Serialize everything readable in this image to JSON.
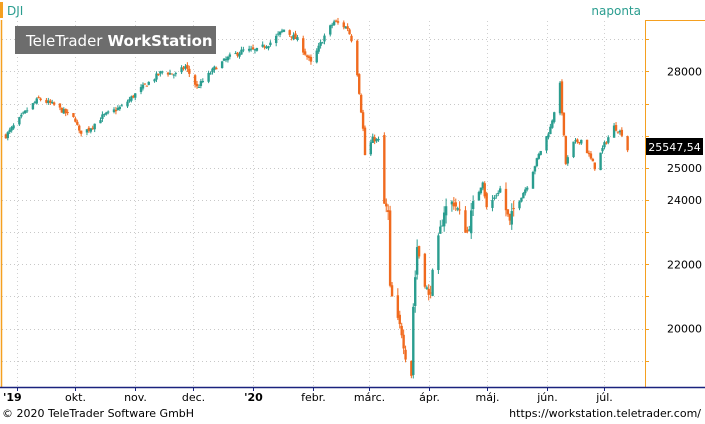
{
  "symbol": "DJI",
  "frequency": "naponta",
  "watermark": {
    "brand_a": "TeleTrader",
    "brand_b": "WorkStation"
  },
  "last_price_label": "25547,54",
  "footer": {
    "copyright": "© 2020 TeleTrader Software GmbH",
    "url": "https://workstation.teletrader.com/"
  },
  "colors": {
    "up": "#2a9d8f",
    "down": "#f06a1e",
    "accent": "#f5a020",
    "axis_bottom": "#1a237e"
  },
  "chart_data": {
    "type": "candlestick",
    "ylim": [
      18213,
      29568
    ],
    "y_ticks": [
      {
        "value": 20000,
        "label": "20000"
      },
      {
        "value": 22000,
        "label": "22000"
      },
      {
        "value": 24000,
        "label": "24000"
      },
      {
        "value": 25000,
        "label": "25000"
      },
      {
        "value": 28000,
        "label": "28000"
      }
    ],
    "x_ticks": [
      "'19",
      "okt.",
      "nov.",
      "dec.",
      "'20",
      "febr.",
      "márc.",
      "ápr.",
      "máj.",
      "jún.",
      "júl."
    ],
    "x_tick_dates": [
      "2019-09-01",
      "2019-10-01",
      "2019-11-01",
      "2019-12-01",
      "2020-01-01",
      "2020-02-01",
      "2020-03-01",
      "2020-04-01",
      "2020-05-01",
      "2020-06-01",
      "2020-07-01"
    ],
    "series_close": [
      [
        "2019-08-26",
        26000
      ],
      [
        "2019-09-06",
        26800
      ],
      [
        "2019-09-12",
        27150
      ],
      [
        "2019-09-20",
        26950
      ],
      [
        "2019-10-01",
        26500
      ],
      [
        "2019-10-03",
        26100
      ],
      [
        "2019-10-08",
        26200
      ],
      [
        "2019-10-15",
        26600
      ],
      [
        "2019-10-25",
        26900
      ],
      [
        "2019-11-04",
        27460
      ],
      [
        "2019-11-15",
        28000
      ],
      [
        "2019-11-22",
        27900
      ],
      [
        "2019-11-27",
        28150
      ],
      [
        "2019-12-03",
        27500
      ],
      [
        "2019-12-13",
        28150
      ],
      [
        "2019-12-20",
        28450
      ],
      [
        "2019-12-27",
        28650
      ],
      [
        "2020-01-03",
        28650
      ],
      [
        "2020-01-10",
        28900
      ],
      [
        "2020-01-17",
        29300
      ],
      [
        "2020-01-24",
        28980
      ],
      [
        "2020-01-31",
        28250
      ],
      [
        "2020-02-07",
        29100
      ],
      [
        "2020-02-12",
        29550
      ],
      [
        "2020-02-19",
        29350
      ],
      [
        "2020-02-21",
        29000
      ],
      [
        "2020-02-24",
        27950
      ],
      [
        "2020-02-27",
        26200
      ],
      [
        "2020-02-28",
        25400
      ],
      [
        "2020-03-03",
        25900
      ],
      [
        "2020-03-06",
        25850
      ],
      [
        "2020-03-09",
        23850
      ],
      [
        "2020-03-11",
        23550
      ],
      [
        "2020-03-12",
        21200
      ],
      [
        "2020-03-16",
        20200
      ],
      [
        "2020-03-18",
        19900
      ],
      [
        "2020-03-20",
        19180
      ],
      [
        "2020-03-23",
        18590
      ],
      [
        "2020-03-24",
        20700
      ],
      [
        "2020-03-26",
        22550
      ],
      [
        "2020-04-01",
        20950
      ],
      [
        "2020-04-06",
        22700
      ],
      [
        "2020-04-09",
        23700
      ],
      [
        "2020-04-14",
        23950
      ],
      [
        "2020-04-21",
        23000
      ],
      [
        "2020-04-24",
        23800
      ],
      [
        "2020-04-29",
        24600
      ],
      [
        "2020-05-01",
        23700
      ],
      [
        "2020-05-08",
        24350
      ],
      [
        "2020-05-13",
        23250
      ],
      [
        "2020-05-15",
        23700
      ],
      [
        "2020-05-22",
        24450
      ],
      [
        "2020-05-28",
        25400
      ],
      [
        "2020-06-03",
        26250
      ],
      [
        "2020-06-08",
        27570
      ],
      [
        "2020-06-11",
        25130
      ],
      [
        "2020-06-15",
        25760
      ],
      [
        "2020-06-19",
        25870
      ],
      [
        "2020-06-26",
        25020
      ],
      [
        "2020-07-01",
        25730
      ],
      [
        "2020-07-06",
        26280
      ],
      [
        "2020-07-10",
        26070
      ],
      [
        "2020-07-13",
        25547.54
      ]
    ]
  }
}
